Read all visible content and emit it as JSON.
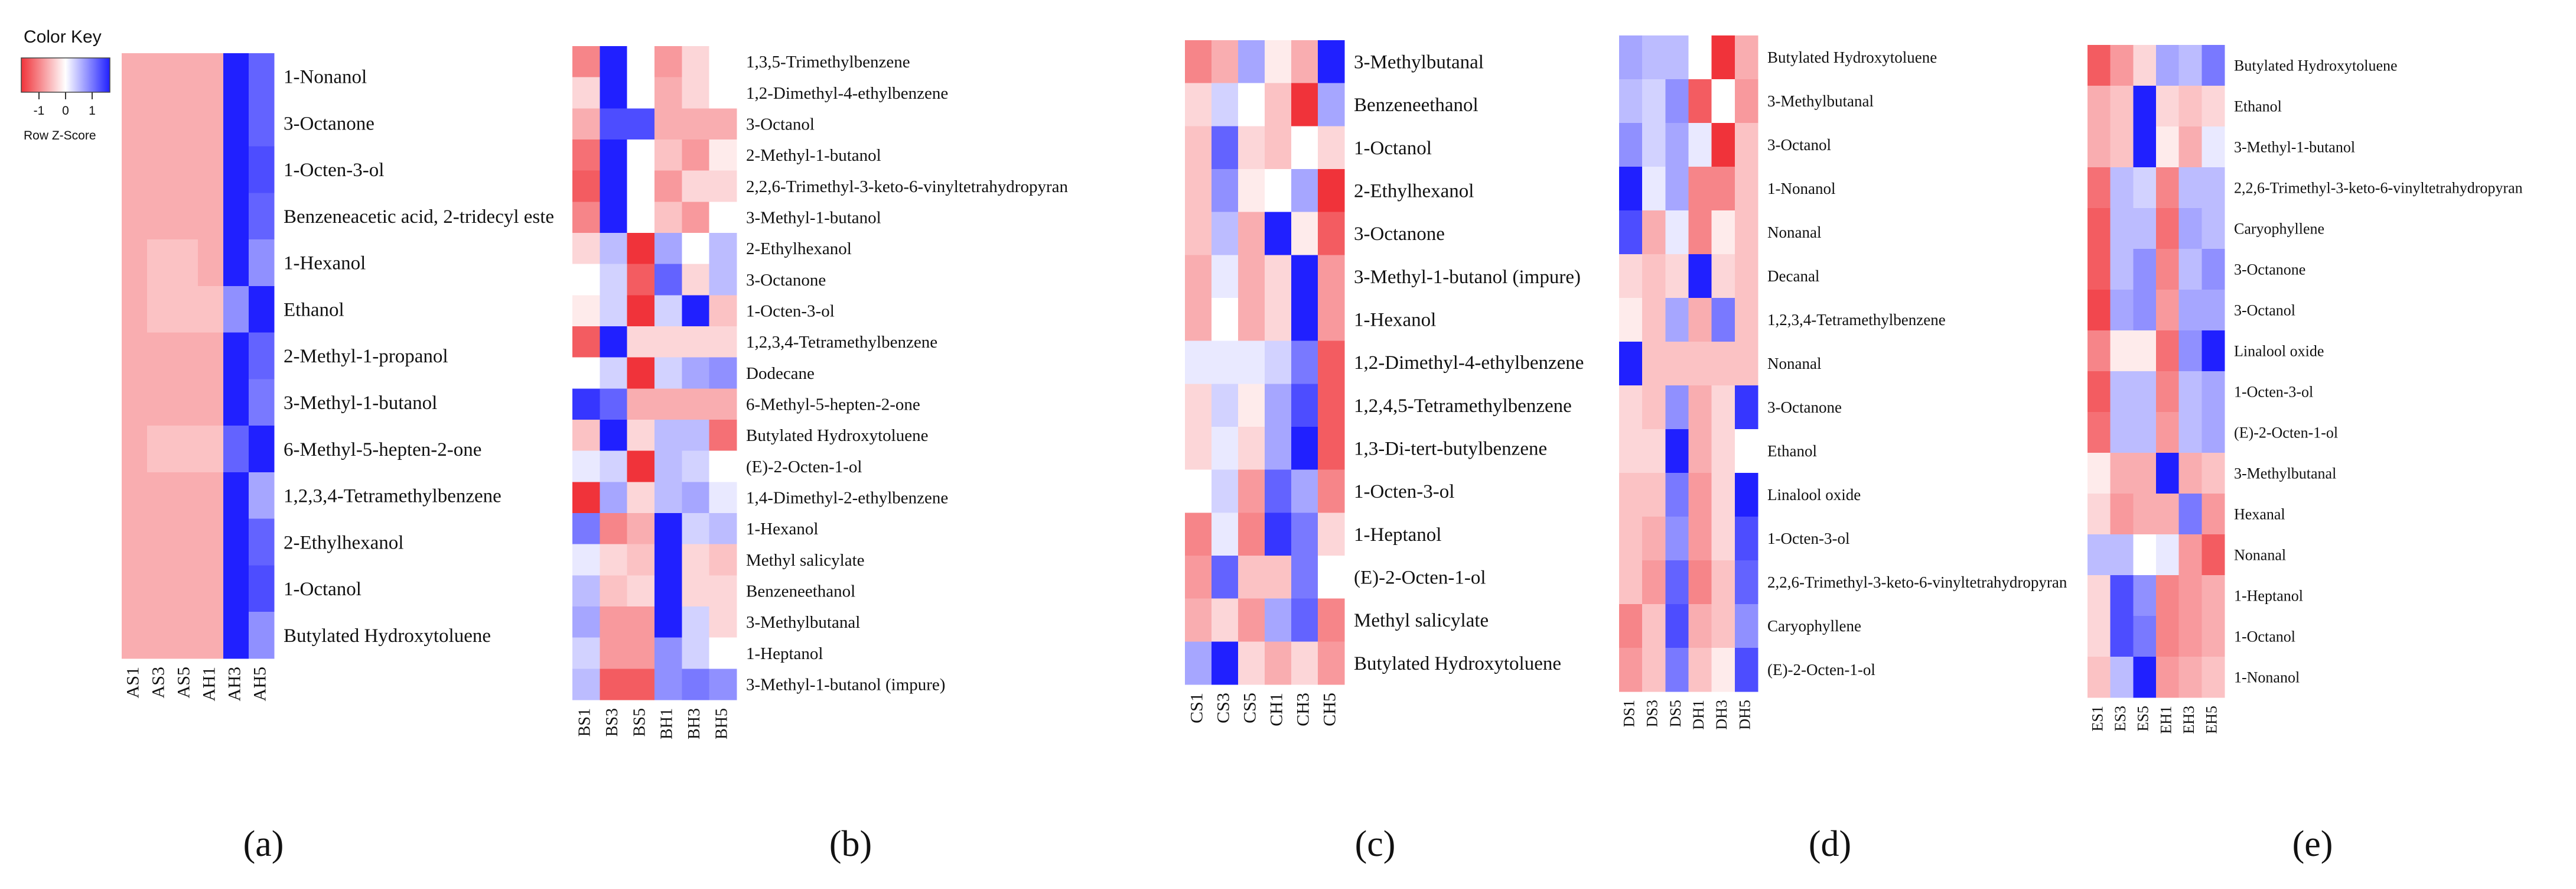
{
  "color_key": {
    "title": "Color Key",
    "subtitle": "Row Z-Score",
    "ticks": [
      "-1",
      "0",
      "1"
    ],
    "colors": {
      "low": "#f0333a",
      "mid": "#ffffff",
      "high": "#2020ff"
    }
  },
  "chart_data": [
    {
      "type": "heatmap",
      "panel_label": "(a)",
      "columns": [
        "AS1",
        "AS3",
        "AS5",
        "AH1",
        "AH3",
        "AH5"
      ],
      "rows": [
        "1-Nonanol",
        "3-Octanone",
        "1-Octen-3-ol",
        "Benzeneacetic acid, 2-tridecyl este",
        "1-Hexanol",
        "Ethanol",
        "2-Methyl-1-propanol",
        "3-Methyl-1-butanol",
        "6-Methyl-5-hepten-2-one",
        "1,2,3,4-Tetramethylbenzene",
        "2-Ethylhexanol",
        "1-Octanol",
        "Butylated Hydroxytoluene"
      ],
      "values": [
        [
          -0.4,
          -0.4,
          -0.4,
          -0.4,
          1.0,
          0.7
        ],
        [
          -0.4,
          -0.4,
          -0.4,
          -0.4,
          1.0,
          0.7
        ],
        [
          -0.4,
          -0.4,
          -0.4,
          -0.4,
          1.0,
          0.8
        ],
        [
          -0.4,
          -0.4,
          -0.4,
          -0.4,
          1.0,
          0.7
        ],
        [
          -0.4,
          -0.3,
          -0.3,
          -0.4,
          1.0,
          0.5
        ],
        [
          -0.4,
          -0.3,
          -0.3,
          -0.3,
          0.5,
          1.0
        ],
        [
          -0.4,
          -0.4,
          -0.4,
          -0.4,
          1.0,
          0.7
        ],
        [
          -0.4,
          -0.4,
          -0.4,
          -0.4,
          1.0,
          0.6
        ],
        [
          -0.4,
          -0.3,
          -0.3,
          -0.3,
          0.7,
          1.0
        ],
        [
          -0.4,
          -0.4,
          -0.4,
          -0.4,
          1.0,
          0.4
        ],
        [
          -0.4,
          -0.4,
          -0.4,
          -0.4,
          1.0,
          0.7
        ],
        [
          -0.4,
          -0.4,
          -0.4,
          -0.4,
          1.0,
          0.8
        ],
        [
          -0.4,
          -0.4,
          -0.4,
          -0.4,
          1.0,
          0.5
        ]
      ]
    },
    {
      "type": "heatmap",
      "panel_label": "(b)",
      "columns": [
        "BS1",
        "BS3",
        "BS5",
        "BH1",
        "BH3",
        "BH5"
      ],
      "rows": [
        "1,3,5-Trimethylbenzene",
        "1,2-Dimethyl-4-ethylbenzene",
        "3-Octanol",
        "2-Methyl-1-butanol",
        "2,2,6-Trimethyl-3-keto-6-vinyltetrahydropyran",
        "3-Methyl-1-butanol",
        "2-Ethylhexanol",
        "3-Octanone",
        "1-Octen-3-ol",
        "1,2,3,4-Tetramethylbenzene",
        "Dodecane",
        "6-Methyl-5-hepten-2-one",
        "Butylated Hydroxytoluene",
        "(E)-2-Octen-1-ol",
        "1,4-Dimethyl-2-ethylbenzene",
        "1-Hexanol",
        "Methyl salicylate",
        "Benzeneethanol",
        "3-Methylbutanal",
        "1-Heptanol",
        "3-Methyl-1-butanol (impure)"
      ],
      "values": [
        [
          -0.6,
          1.0,
          0.0,
          -0.5,
          -0.2,
          0.0
        ],
        [
          -0.2,
          1.0,
          0.0,
          -0.4,
          -0.2,
          0.0
        ],
        [
          -0.4,
          0.8,
          0.8,
          -0.4,
          -0.4,
          -0.4
        ],
        [
          -0.7,
          1.0,
          0.0,
          -0.3,
          -0.5,
          -0.1
        ],
        [
          -0.8,
          1.0,
          0.0,
          -0.5,
          -0.2,
          -0.2
        ],
        [
          -0.6,
          1.0,
          0.0,
          -0.3,
          -0.5,
          0.0
        ],
        [
          -0.2,
          0.3,
          -1.0,
          0.4,
          0.0,
          0.3
        ],
        [
          0.0,
          0.2,
          -0.8,
          0.7,
          -0.2,
          0.3
        ],
        [
          -0.1,
          0.2,
          -1.0,
          0.2,
          1.0,
          -0.3
        ],
        [
          -0.8,
          1.0,
          -0.2,
          -0.2,
          -0.2,
          -0.2
        ],
        [
          0.0,
          0.2,
          -1.0,
          0.2,
          0.4,
          0.5
        ],
        [
          0.9,
          0.7,
          -0.4,
          -0.4,
          -0.4,
          -0.4
        ],
        [
          -0.3,
          1.0,
          -0.2,
          0.3,
          0.3,
          -0.7
        ],
        [
          0.1,
          0.2,
          -1.0,
          0.3,
          0.2,
          0.0
        ],
        [
          -1.0,
          0.4,
          -0.2,
          0.3,
          0.4,
          0.1
        ],
        [
          0.6,
          -0.6,
          -0.4,
          1.0,
          0.2,
          0.3
        ],
        [
          0.1,
          -0.2,
          -0.3,
          1.0,
          -0.2,
          -0.3
        ],
        [
          0.3,
          -0.3,
          -0.2,
          1.0,
          -0.2,
          -0.2
        ],
        [
          0.4,
          -0.5,
          -0.5,
          1.0,
          0.2,
          -0.2
        ],
        [
          0.2,
          -0.5,
          -0.5,
          0.5,
          0.2,
          0.0
        ],
        [
          0.3,
          -0.8,
          -0.8,
          0.5,
          0.6,
          0.5
        ]
      ]
    },
    {
      "type": "heatmap",
      "panel_label": "(c)",
      "columns": [
        "CS1",
        "CS3",
        "CS5",
        "CH1",
        "CH3",
        "CH5"
      ],
      "rows": [
        "3-Methylbutanal",
        "Benzeneethanol",
        "1-Octanol",
        "2-Ethylhexanol",
        "3-Octanone",
        "3-Methyl-1-butanol (impure)",
        "1-Hexanol",
        "1,2-Dimethyl-4-ethylbenzene",
        "1,2,4,5-Tetramethylbenzene",
        "1,3-Di-tert-butylbenzene",
        "1-Octen-3-ol",
        "1-Heptanol",
        "(E)-2-Octen-1-ol",
        "Methyl salicylate",
        "Butylated Hydroxytoluene"
      ],
      "values": [
        [
          -0.6,
          -0.4,
          0.4,
          -0.1,
          -0.4,
          1.0
        ],
        [
          -0.2,
          0.2,
          0.0,
          -0.3,
          -1.0,
          0.4
        ],
        [
          -0.3,
          0.7,
          -0.2,
          -0.3,
          0.0,
          -0.2
        ],
        [
          -0.3,
          0.5,
          -0.1,
          0.0,
          0.4,
          -1.0
        ],
        [
          -0.3,
          0.3,
          -0.4,
          1.0,
          -0.1,
          -0.8
        ],
        [
          -0.4,
          0.1,
          -0.4,
          -0.2,
          1.0,
          -0.5
        ],
        [
          -0.4,
          0.0,
          -0.4,
          -0.2,
          1.0,
          -0.5
        ],
        [
          0.1,
          0.1,
          0.1,
          0.2,
          0.6,
          -0.8
        ],
        [
          -0.2,
          0.2,
          -0.1,
          0.4,
          0.8,
          -0.8
        ],
        [
          -0.2,
          0.1,
          -0.2,
          0.4,
          1.0,
          -0.8
        ],
        [
          0.0,
          0.2,
          -0.5,
          0.7,
          0.4,
          -0.6
        ],
        [
          -0.6,
          0.1,
          -0.6,
          0.9,
          0.6,
          -0.2
        ],
        [
          -0.5,
          0.7,
          -0.3,
          -0.3,
          0.6,
          0.0
        ],
        [
          -0.4,
          -0.2,
          -0.5,
          0.4,
          0.7,
          -0.6
        ],
        [
          0.4,
          1.0,
          -0.2,
          -0.4,
          -0.2,
          -0.5
        ]
      ]
    },
    {
      "type": "heatmap",
      "panel_label": "(d)",
      "columns": [
        "DS1",
        "DS3",
        "DS5",
        "DH1",
        "DH3",
        "DH5"
      ],
      "rows": [
        "Butylated Hydroxytoluene",
        "3-Methylbutanal",
        "3-Octanol",
        "1-Nonanol",
        "Nonanal",
        "Decanal",
        "1,2,3,4-Tetramethylbenzene",
        "Nonanal",
        "3-Octanone",
        "Ethanol",
        "Linalool oxide",
        "1-Octen-3-ol",
        "2,2,6-Trimethyl-3-keto-6-vinyltetrahydropyran",
        "Caryophyllene",
        "(E)-2-Octen-1-ol"
      ],
      "values": [
        [
          0.4,
          0.3,
          0.3,
          0.0,
          -1.0,
          -0.4
        ],
        [
          0.3,
          0.2,
          0.5,
          -0.8,
          0.0,
          -0.5
        ],
        [
          0.5,
          0.2,
          0.4,
          0.1,
          -1.0,
          -0.3
        ],
        [
          1.0,
          0.1,
          0.4,
          -0.6,
          -0.6,
          -0.3
        ],
        [
          0.8,
          -0.4,
          0.1,
          -0.6,
          -0.1,
          -0.3
        ],
        [
          -0.2,
          -0.3,
          -0.2,
          1.0,
          -0.2,
          -0.3
        ],
        [
          -0.1,
          -0.3,
          0.4,
          -0.4,
          0.6,
          -0.3
        ],
        [
          1.0,
          -0.3,
          -0.3,
          -0.3,
          -0.3,
          -0.3
        ],
        [
          -0.2,
          -0.3,
          0.5,
          -0.4,
          -0.2,
          0.9
        ],
        [
          -0.2,
          -0.2,
          1.0,
          -0.4,
          -0.2,
          0.0
        ],
        [
          -0.3,
          -0.3,
          0.6,
          -0.5,
          -0.2,
          1.0
        ],
        [
          -0.3,
          -0.4,
          0.5,
          -0.5,
          -0.2,
          0.8
        ],
        [
          -0.3,
          -0.5,
          0.7,
          -0.6,
          -0.3,
          0.7
        ],
        [
          -0.6,
          -0.3,
          0.8,
          -0.4,
          -0.3,
          0.5
        ],
        [
          -0.5,
          -0.3,
          0.6,
          -0.3,
          -0.1,
          0.8
        ]
      ]
    },
    {
      "type": "heatmap",
      "panel_label": "(e)",
      "columns": [
        "ES1",
        "ES3",
        "ES5",
        "EH1",
        "EH3",
        "EH5"
      ],
      "rows": [
        "Butylated Hydroxytoluene",
        "Ethanol",
        "3-Methyl-1-butanol",
        "2,2,6-Trimethyl-3-keto-6-vinyltetrahydropyran",
        "Caryophyllene",
        "3-Octanone",
        "3-Octanol",
        "Linalool oxide",
        "1-Octen-3-ol",
        "(E)-2-Octen-1-ol",
        "3-Methylbutanal",
        "Hexanal",
        "Nonanal",
        "1-Heptanol",
        "1-Octanol",
        "1-Nonanol"
      ],
      "values": [
        [
          -0.8,
          -0.5,
          -0.2,
          0.4,
          0.3,
          0.6
        ],
        [
          -0.4,
          -0.3,
          1.0,
          -0.2,
          -0.3,
          -0.2
        ],
        [
          -0.4,
          -0.3,
          1.0,
          -0.1,
          -0.4,
          0.1
        ],
        [
          -0.7,
          0.3,
          0.2,
          -0.6,
          0.3,
          0.3
        ],
        [
          -0.8,
          0.3,
          0.3,
          -0.7,
          0.4,
          0.3
        ],
        [
          -0.8,
          0.3,
          0.5,
          -0.6,
          0.3,
          0.5
        ],
        [
          -0.9,
          0.4,
          0.5,
          -0.5,
          0.4,
          0.4
        ],
        [
          -0.6,
          -0.1,
          -0.1,
          -0.7,
          0.5,
          1.0
        ],
        [
          -0.8,
          0.3,
          0.3,
          -0.6,
          0.3,
          0.4
        ],
        [
          -0.7,
          0.3,
          0.3,
          -0.5,
          0.3,
          0.4
        ],
        [
          -0.1,
          -0.4,
          -0.4,
          1.0,
          -0.4,
          -0.3
        ],
        [
          -0.2,
          -0.5,
          -0.4,
          -0.4,
          0.6,
          -0.5
        ],
        [
          0.3,
          0.3,
          0.0,
          0.1,
          -0.5,
          -0.8
        ],
        [
          -0.2,
          0.8,
          0.5,
          -0.6,
          -0.5,
          -0.4
        ],
        [
          -0.2,
          0.8,
          0.6,
          -0.6,
          -0.5,
          -0.4
        ],
        [
          -0.3,
          0.3,
          1.0,
          -0.5,
          -0.4,
          -0.3
        ]
      ]
    }
  ]
}
